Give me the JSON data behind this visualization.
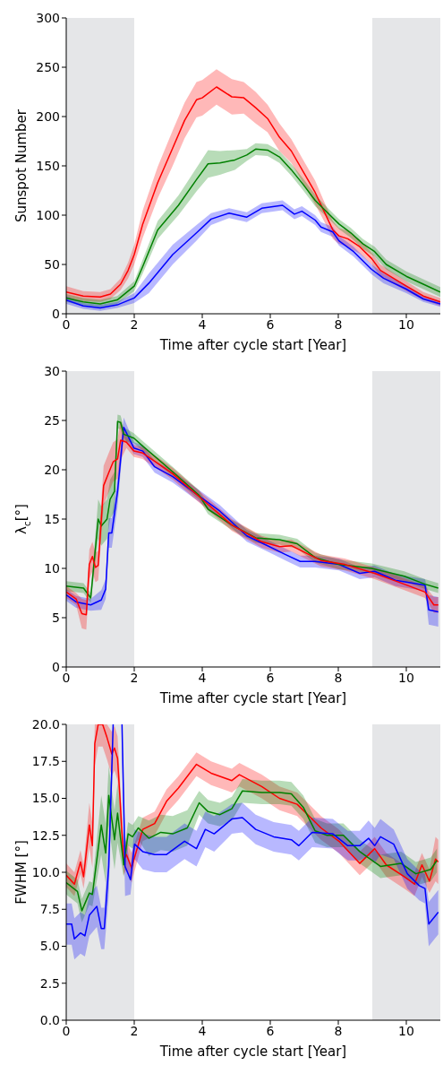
{
  "chart_data": [
    {
      "type": "line",
      "xlabel": "Time after cycle start [Year]",
      "ylabel": "Sunspot Number",
      "xlim": [
        0,
        11
      ],
      "xticks": [
        0,
        2,
        4,
        6,
        8,
        10
      ],
      "ylim": [
        0,
        300
      ],
      "yticks": [
        0,
        50,
        100,
        150,
        200,
        250,
        300
      ],
      "bands": [
        {
          "axis": "x",
          "from": 0,
          "to": 2,
          "color": "#e5e6e8"
        },
        {
          "axis": "x",
          "from": 9,
          "to": 11,
          "color": "#e5e6e8"
        }
      ],
      "series": [
        {
          "color": "#ff0000",
          "x": [
            0,
            0.5,
            1,
            1.3,
            1.6,
            1.82,
            2,
            2.25,
            2.69,
            3.13,
            3.48,
            3.83,
            4,
            4.42,
            4.87,
            5.22,
            5.57,
            5.92,
            6.27,
            6.62,
            6.97,
            7.32,
            7.58,
            7.84,
            8.02,
            8.28,
            8.63,
            8.98,
            9.24,
            10,
            10.5,
            11
          ],
          "values": [
            22,
            18,
            17,
            20,
            30,
            44,
            60,
            91,
            133,
            168,
            196,
            217,
            219,
            230,
            220,
            219,
            209,
            198,
            179,
            165,
            144,
            123,
            104,
            85,
            79,
            76,
            68,
            56,
            44,
            28,
            18,
            12
          ],
          "lower": [
            16,
            13,
            12,
            15,
            24,
            36,
            50,
            77,
            117,
            150,
            178,
            199,
            201,
            212,
            202,
            203,
            193,
            184,
            165,
            153,
            132,
            111,
            94,
            76,
            71,
            68,
            61,
            50,
            38,
            23,
            14,
            8
          ],
          "upper": [
            28,
            23,
            22,
            25,
            36,
            52,
            70,
            105,
            149,
            186,
            214,
            235,
            237,
            248,
            238,
            235,
            225,
            212,
            193,
            177,
            156,
            135,
            114,
            94,
            87,
            84,
            75,
            62,
            50,
            33,
            22,
            16
          ]
        },
        {
          "color": "#008000",
          "x": [
            0,
            0.5,
            1,
            1.5,
            2,
            2.25,
            2.69,
            3.3,
            3.83,
            4.17,
            4.52,
            4.96,
            5.31,
            5.57,
            5.92,
            6.27,
            6.62,
            6.97,
            7.32,
            7.67,
            8.02,
            8.37,
            8.72,
            9.07,
            9.41,
            10,
            10.5,
            11
          ],
          "values": [
            16,
            12,
            10,
            14,
            28,
            48,
            85,
            110,
            136,
            152,
            153,
            156,
            161,
            167,
            166,
            159,
            146,
            131,
            115,
            103,
            91,
            82,
            71,
            63,
            50,
            38,
            30,
            22
          ],
          "lower": [
            12,
            8,
            6,
            10,
            23,
            41,
            76,
            100,
            124,
            138,
            141,
            146,
            155,
            161,
            160,
            153,
            140,
            125,
            109,
            98,
            86,
            77,
            66,
            58,
            45,
            33,
            25,
            17
          ],
          "upper": [
            20,
            16,
            14,
            18,
            33,
            55,
            94,
            120,
            148,
            166,
            165,
            166,
            167,
            173,
            172,
            165,
            152,
            137,
            121,
            108,
            96,
            87,
            76,
            68,
            55,
            43,
            35,
            27
          ]
        },
        {
          "color": "#0000ff",
          "x": [
            0,
            0.5,
            1,
            1.5,
            2,
            2.43,
            3.13,
            3.83,
            4.26,
            4.79,
            5.31,
            5.75,
            6.36,
            6.71,
            6.93,
            7.32,
            7.49,
            7.84,
            8.02,
            8.45,
            8.98,
            9.33,
            10,
            10.5,
            11
          ],
          "values": [
            14,
            8,
            6,
            9,
            16,
            31,
            60,
            82,
            96,
            102,
            98,
            107,
            110,
            101,
            104,
            95,
            88,
            83,
            74,
            63,
            45,
            36,
            25,
            15,
            10
          ],
          "lower": [
            10,
            5,
            3,
            6,
            11,
            21,
            50,
            74,
            90,
            97,
            93,
            102,
            105,
            96,
            99,
            90,
            83,
            78,
            69,
            58,
            40,
            31,
            21,
            12,
            7
          ],
          "upper": [
            18,
            11,
            9,
            12,
            21,
            41,
            70,
            90,
            102,
            107,
            103,
            112,
            115,
            106,
            109,
            100,
            93,
            88,
            79,
            68,
            50,
            41,
            29,
            18,
            13
          ]
        }
      ]
    },
    {
      "type": "line",
      "xlabel": "Time after cycle start [Year]",
      "ylabel": "λ$_{c}$[°]",
      "xlim": [
        0,
        11
      ],
      "xticks": [
        0,
        2,
        4,
        6,
        8,
        10
      ],
      "ylim": [
        0,
        30
      ],
      "yticks": [
        0,
        5,
        10,
        15,
        20,
        25,
        30
      ],
      "bands": [
        {
          "axis": "x",
          "from": 0,
          "to": 2,
          "color": "#e5e6e8"
        },
        {
          "axis": "x",
          "from": 9,
          "to": 11,
          "color": "#e5e6e8"
        }
      ],
      "series": [
        {
          "color": "#0000ff",
          "x": [
            0,
            0.29,
            0.72,
            1.03,
            1.16,
            1.25,
            1.34,
            1.51,
            1.69,
            1.99,
            2.25,
            2.6,
            3.13,
            4,
            4.52,
            5.31,
            5.92,
            6.45,
            6.88,
            7.32,
            8.02,
            8.63,
            9.07,
            9.68,
            10.55,
            10.66,
            10.94
          ],
          "values": [
            7.3,
            6.6,
            6.3,
            6.8,
            7.9,
            13.6,
            13.6,
            17.8,
            24.3,
            22.2,
            21.9,
            20.3,
            19.3,
            17.1,
            15.8,
            13.3,
            12.3,
            11.4,
            10.7,
            10.7,
            10.4,
            9.5,
            9.7,
            8.8,
            8.3,
            5.8,
            5.6
          ],
          "lower": [
            6.7,
            6.0,
            5.7,
            5.8,
            6.9,
            12.1,
            12.1,
            16.3,
            23.3,
            21.6,
            21.3,
            19.7,
            18.7,
            16.5,
            15.2,
            12.7,
            11.7,
            10.8,
            10.1,
            10.1,
            9.8,
            8.9,
            9.1,
            8.2,
            7.7,
            4.3,
            4.1
          ],
          "upper": [
            7.9,
            7.2,
            6.9,
            7.8,
            8.9,
            15.1,
            15.1,
            19.3,
            25.3,
            22.8,
            22.5,
            20.9,
            19.9,
            17.7,
            16.4,
            13.9,
            12.9,
            12.0,
            11.3,
            11.3,
            11.0,
            10.1,
            10.3,
            9.4,
            8.9,
            7.3,
            7.1
          ]
        },
        {
          "color": "#008000",
          "x": [
            0,
            0.51,
            0.72,
            0.94,
            1.03,
            1.2,
            1.29,
            1.42,
            1.51,
            1.6,
            1.69,
            1.99,
            2.25,
            3.13,
            3.91,
            4.17,
            4.87,
            5.57,
            6.27,
            6.79,
            7.32,
            8.02,
            8.98,
            9.94,
            10.55,
            10.94
          ],
          "values": [
            8.2,
            8.0,
            7.0,
            15.0,
            14.3,
            15.0,
            17.0,
            17.8,
            24.9,
            24.8,
            23.6,
            23.2,
            22.4,
            19.8,
            17.4,
            16.0,
            14.4,
            13.1,
            12.9,
            12.5,
            11.1,
            10.4,
            10.0,
            9.2,
            8.4,
            8.0
          ],
          "lower": [
            7.7,
            7.5,
            6.5,
            13.0,
            12.3,
            13.0,
            15.0,
            15.8,
            24.2,
            24.1,
            22.9,
            22.7,
            21.9,
            19.3,
            16.9,
            15.5,
            13.9,
            12.6,
            12.4,
            12.0,
            10.6,
            9.9,
            9.5,
            8.7,
            7.9,
            7.5
          ],
          "upper": [
            8.7,
            8.5,
            7.5,
            17.0,
            16.3,
            17.0,
            19.0,
            19.8,
            25.6,
            25.5,
            24.3,
            23.7,
            22.9,
            20.3,
            17.9,
            16.5,
            14.9,
            13.6,
            13.4,
            13.0,
            11.6,
            10.9,
            10.5,
            9.7,
            8.9,
            8.5
          ]
        },
        {
          "color": "#ff0000",
          "x": [
            0,
            0.29,
            0.46,
            0.59,
            0.68,
            0.77,
            0.86,
            0.94,
            1.1,
            1.25,
            1.38,
            1.51,
            1.6,
            1.77,
            1.99,
            2.25,
            3.13,
            4,
            4.87,
            5.75,
            6.27,
            6.62,
            6.97,
            7.49,
            8.19,
            9.07,
            9.94,
            10.55,
            10.81,
            10.94
          ],
          "values": [
            7.6,
            6.9,
            5.4,
            5.3,
            10.4,
            11.2,
            10.1,
            10.3,
            18.4,
            19.7,
            20.8,
            21.1,
            23.0,
            22.8,
            21.9,
            21.7,
            19.6,
            17.0,
            14.4,
            12.7,
            12.2,
            12.3,
            11.7,
            10.8,
            10.4,
            9.5,
            8.4,
            7.6,
            6.3,
            6.3
          ],
          "lower": [
            7.0,
            6.3,
            3.9,
            3.8,
            8.9,
            9.7,
            8.6,
            8.8,
            16.4,
            17.7,
            18.8,
            19.1,
            21.0,
            22.2,
            21.3,
            21.1,
            19.0,
            16.4,
            13.8,
            12.1,
            11.6,
            11.7,
            11.1,
            10.2,
            9.8,
            8.9,
            7.8,
            7.0,
            5.5,
            5.5
          ],
          "upper": [
            8.2,
            7.5,
            6.9,
            6.8,
            11.9,
            12.7,
            11.6,
            11.8,
            20.4,
            21.7,
            22.8,
            23.1,
            25.0,
            23.4,
            22.5,
            22.3,
            20.2,
            17.6,
            15.0,
            13.3,
            12.8,
            12.9,
            12.3,
            11.4,
            11.0,
            10.1,
            9.0,
            8.2,
            7.1,
            7.1
          ]
        }
      ]
    },
    {
      "type": "line",
      "xlabel": "Time after cycle start [Year]",
      "ylabel": "FWHM [°]",
      "xlim": [
        0,
        11
      ],
      "xticks": [
        0,
        2,
        4,
        6,
        8,
        10
      ],
      "ylim": [
        0,
        20
      ],
      "yticks": [
        {
          "value": 0,
          "label": "0.0"
        },
        {
          "value": 2.5,
          "label": "2.5"
        },
        {
          "value": 5,
          "label": "5.0"
        },
        {
          "value": 7.5,
          "label": "7.5"
        },
        {
          "value": 10,
          "label": "10.0"
        },
        {
          "value": 12.5,
          "label": "12.5"
        },
        {
          "value": 15,
          "label": "15.0"
        },
        {
          "value": 17.5,
          "label": "17.5"
        },
        {
          "value": 20,
          "label": "20.0"
        }
      ],
      "bands": [
        {
          "axis": "x",
          "from": 0,
          "to": 2,
          "color": "#e5e6e8"
        },
        {
          "axis": "x",
          "from": 9,
          "to": 11,
          "color": "#e5e6e8"
        }
      ],
      "series": [
        {
          "color": "#ff0000",
          "x": [
            0,
            0.24,
            0.42,
            0.51,
            0.68,
            0.77,
            0.84,
            0.94,
            1.07,
            1.2,
            1.34,
            1.42,
            1.51,
            1.69,
            1.77,
            1.92,
            2.25,
            2.6,
            2.95,
            3.3,
            3.83,
            4.26,
            4.87,
            5.09,
            5.75,
            6.27,
            6.79,
            7.14,
            7.49,
            8.02,
            8.63,
            9.07,
            9.41,
            9.94,
            10.24,
            10.46,
            10.68,
            10.86,
            10.94
          ],
          "values": [
            9.8,
            9.2,
            10.7,
            9.7,
            13.2,
            11.8,
            18.7,
            20,
            20,
            19.1,
            18.0,
            18.4,
            17.7,
            10.8,
            11.2,
            10.3,
            12.9,
            13.3,
            14.8,
            15.7,
            17.3,
            16.7,
            16.2,
            16.6,
            15.8,
            15.0,
            14.6,
            13.8,
            13.0,
            12.1,
            10.6,
            11.6,
            10.5,
            9.7,
            9.2,
            10.5,
            9.4,
            10.9,
            10.7
          ],
          "lower": [
            9.0,
            8.4,
            9.9,
            8.9,
            11.7,
            10.3,
            17.2,
            18.5,
            18.5,
            17.6,
            16.5,
            16.9,
            16.2,
            9.8,
            10.2,
            9.3,
            12.1,
            12.5,
            14.0,
            14.9,
            16.5,
            15.9,
            15.4,
            15.8,
            15.0,
            14.2,
            13.8,
            13.0,
            12.2,
            11.3,
            9.8,
            10.8,
            9.7,
            8.9,
            8.4,
            9.7,
            8.6,
            9.4,
            9.2
          ],
          "upper": [
            10.6,
            10.0,
            11.5,
            10.5,
            14.7,
            13.3,
            20,
            20,
            20,
            20,
            19.5,
            19.9,
            19.2,
            11.8,
            12.2,
            11.3,
            13.7,
            14.1,
            15.6,
            16.5,
            18.1,
            17.5,
            17.0,
            17.4,
            16.6,
            15.8,
            15.4,
            14.6,
            13.8,
            12.9,
            11.4,
            12.4,
            11.3,
            10.5,
            10.0,
            11.3,
            10.2,
            12.4,
            12.2
          ]
        },
        {
          "color": "#008000",
          "x": [
            0,
            0.33,
            0.46,
            0.68,
            0.77,
            1.03,
            1.16,
            1.25,
            1.42,
            1.51,
            1.69,
            1.82,
            1.95,
            2.12,
            2.43,
            2.78,
            3.13,
            3.56,
            3.91,
            4.17,
            4.52,
            4.87,
            5.18,
            5.75,
            6.27,
            6.62,
            6.97,
            7.32,
            7.67,
            8.15,
            8.63,
            9.24,
            9.85,
            10.28,
            10.72,
            10.9
          ],
          "values": [
            9.3,
            8.7,
            7.4,
            8.6,
            8.5,
            13.2,
            11.3,
            15.2,
            12.2,
            14.0,
            10.5,
            12.6,
            12.4,
            13.0,
            12.3,
            12.7,
            12.6,
            13.0,
            14.7,
            14.1,
            13.9,
            14.3,
            15.5,
            15.4,
            15.4,
            15.3,
            14.4,
            12.8,
            12.5,
            12.5,
            11.4,
            10.4,
            10.6,
            9.9,
            10.2,
            10.8
          ],
          "lower": [
            8.5,
            7.9,
            6.6,
            7.8,
            7.7,
            11.2,
            9.3,
            13.2,
            10.2,
            12.0,
            9.7,
            11.8,
            11.6,
            12.2,
            11.1,
            11.5,
            11.4,
            11.8,
            13.9,
            13.3,
            13.1,
            13.5,
            14.7,
            14.6,
            14.6,
            14.5,
            13.6,
            12.0,
            11.7,
            11.7,
            10.6,
            9.6,
            9.8,
            9.1,
            9.4,
            10.0
          ],
          "upper": [
            10.1,
            9.5,
            8.2,
            9.4,
            9.3,
            15.2,
            13.3,
            17.2,
            14.2,
            16.0,
            11.3,
            13.4,
            13.2,
            13.8,
            13.5,
            13.9,
            13.8,
            14.2,
            15.5,
            14.9,
            14.7,
            15.1,
            16.3,
            16.2,
            16.2,
            16.1,
            15.2,
            13.6,
            13.3,
            13.3,
            12.2,
            11.2,
            11.4,
            10.7,
            11.0,
            11.6
          ]
        },
        {
          "color": "#0000ff",
          "x": [
            0,
            0.16,
            0.24,
            0.42,
            0.55,
            0.68,
            0.9,
            1.03,
            1.12,
            1.25,
            1.38,
            1.5,
            1.64,
            1.73,
            1.89,
            2.01,
            2.25,
            2.6,
            2.95,
            3.48,
            3.83,
            4.09,
            4.35,
            4.87,
            5.18,
            5.57,
            6.1,
            6.62,
            6.84,
            7.23,
            7.84,
            8.28,
            8.63,
            8.89,
            9.07,
            9.24,
            9.63,
            10.03,
            10.38,
            10.55,
            10.66,
            10.94
          ],
          "values": [
            6.5,
            6.5,
            5.5,
            5.9,
            5.7,
            7.1,
            7.7,
            6.2,
            6.2,
            10.4,
            20,
            null,
            20,
            10.4,
            9.5,
            11.9,
            11.4,
            11.2,
            11.2,
            12.1,
            11.6,
            12.9,
            12.6,
            13.6,
            13.7,
            12.9,
            12.4,
            12.2,
            11.8,
            12.7,
            12.6,
            11.8,
            11.8,
            12.3,
            11.8,
            12.4,
            11.9,
            9.9,
            9.1,
            8.9,
            6.5,
            7.3
          ],
          "lower": [
            5.1,
            5.1,
            4.1,
            4.5,
            4.3,
            5.7,
            6.3,
            4.8,
            4.8,
            8.4,
            18,
            null,
            18,
            8.4,
            8.5,
            10.9,
            10.2,
            10.0,
            10.0,
            10.9,
            10.4,
            11.7,
            11.4,
            12.6,
            12.7,
            11.9,
            11.4,
            11.2,
            10.8,
            11.7,
            11.6,
            10.8,
            10.8,
            11.1,
            10.6,
            11.2,
            10.9,
            8.9,
            8.1,
            7.9,
            5.0,
            5.8
          ],
          "upper": [
            7.9,
            7.9,
            6.9,
            7.3,
            7.1,
            8.5,
            9.1,
            7.6,
            7.6,
            12.4,
            20,
            null,
            20,
            12.4,
            10.5,
            12.9,
            12.6,
            12.4,
            12.4,
            13.3,
            12.8,
            14.1,
            13.8,
            14.6,
            14.7,
            13.9,
            13.4,
            13.2,
            12.8,
            13.7,
            13.6,
            12.8,
            12.8,
            13.5,
            13.0,
            13.6,
            12.9,
            10.9,
            10.1,
            9.9,
            8.0,
            8.8
          ]
        }
      ]
    }
  ]
}
